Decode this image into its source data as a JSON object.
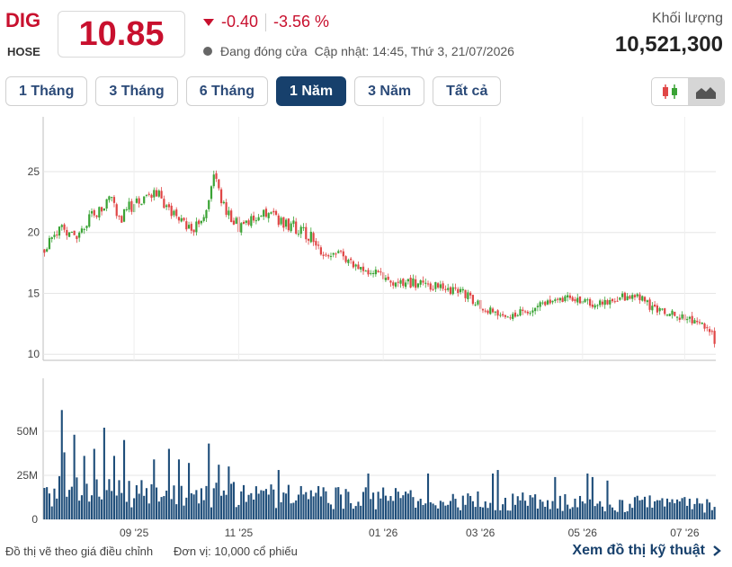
{
  "header": {
    "ticker": "DIG",
    "exchange": "HOSE",
    "price": "10.85",
    "change": "-0.40",
    "change_pct": "-3.56 %",
    "status": "Đang đóng cửa",
    "updated": "Cập nhật: 14:45, Thứ 3, 21/07/2026",
    "volume_label": "Khối lượng",
    "volume_value": "10,521,300"
  },
  "ranges": [
    "1 Tháng",
    "3 Tháng",
    "6 Tháng",
    "1 Năm",
    "3 Năm",
    "Tất cả"
  ],
  "active_range": "1 Năm",
  "chart_type_buttons": [
    {
      "icon": "candlestick-icon",
      "active": false
    },
    {
      "icon": "area-chart-icon",
      "active": true
    }
  ],
  "colors": {
    "up": "#3aa335",
    "down": "#e04646",
    "volume": "#1f4e7a",
    "grid": "#e6e6e6",
    "accent": "#c8102e"
  },
  "footer": {
    "note1": "Đồ thị vẽ theo giá điều chỉnh",
    "note2": "Đơn vị: 10,000 cổ phiếu",
    "tech_link": "Xem đồ thị kỹ thuật"
  },
  "chart_data": [
    {
      "type": "candlestick",
      "title": "",
      "ylim": [
        9.5,
        29.5
      ],
      "yticks": [
        10,
        15,
        20,
        25
      ],
      "xticks": [
        "09 '25",
        "11 '25",
        "01 '26",
        "03 '26",
        "05 '26",
        "07 '26"
      ],
      "xtick_index": [
        36,
        78,
        136,
        175,
        216,
        257
      ],
      "count": 270,
      "anchors": [
        [
          0,
          18.5
        ],
        [
          6,
          20.5
        ],
        [
          12,
          19.5
        ],
        [
          20,
          21.5
        ],
        [
          26,
          23.0
        ],
        [
          30,
          21.0
        ],
        [
          36,
          22.5
        ],
        [
          44,
          23.5
        ],
        [
          50,
          22.0
        ],
        [
          56,
          21.0
        ],
        [
          60,
          20.0
        ],
        [
          66,
          22.5
        ],
        [
          68,
          24.5
        ],
        [
          72,
          22.0
        ],
        [
          78,
          20.5
        ],
        [
          84,
          21.0
        ],
        [
          90,
          21.5
        ],
        [
          100,
          20.5
        ],
        [
          108,
          19.5
        ],
        [
          112,
          18.0
        ],
        [
          118,
          18.5
        ],
        [
          126,
          17.0
        ],
        [
          134,
          16.5
        ],
        [
          140,
          16.0
        ],
        [
          150,
          15.8
        ],
        [
          160,
          15.5
        ],
        [
          168,
          15.0
        ],
        [
          175,
          14.0
        ],
        [
          180,
          13.5
        ],
        [
          186,
          12.8
        ],
        [
          192,
          13.5
        ],
        [
          200,
          14.0
        ],
        [
          206,
          14.3
        ],
        [
          212,
          14.6
        ],
        [
          220,
          14.2
        ],
        [
          230,
          14.6
        ],
        [
          236,
          14.9
        ],
        [
          240,
          14.5
        ],
        [
          244,
          13.8
        ],
        [
          252,
          13.3
        ],
        [
          258,
          12.9
        ],
        [
          264,
          12.3
        ],
        [
          268,
          11.8
        ],
        [
          269,
          10.85
        ]
      ],
      "volume": {
        "ylim": [
          0,
          80
        ],
        "yticks": [
          0,
          25,
          50
        ],
        "ytick_labels": [
          "0",
          "25M",
          "50M"
        ],
        "peaks": [
          [
            7,
            62
          ],
          [
            24,
            52
          ],
          [
            12,
            48
          ],
          [
            32,
            45
          ],
          [
            66,
            43
          ],
          [
            20,
            40
          ],
          [
            50,
            40
          ],
          [
            8,
            38
          ],
          [
            16,
            36
          ],
          [
            28,
            36
          ],
          [
            44,
            34
          ],
          [
            54,
            34
          ],
          [
            58,
            32
          ],
          [
            70,
            31
          ],
          [
            74,
            30
          ],
          [
            94,
            28
          ],
          [
            130,
            26
          ],
          [
            154,
            26
          ],
          [
            180,
            26
          ],
          [
            182,
            28
          ],
          [
            205,
            24
          ],
          [
            218,
            26
          ],
          [
            220,
            24
          ],
          [
            226,
            22
          ],
          [
            248,
            12
          ],
          [
            262,
            12
          ]
        ],
        "base_early": 16,
        "base_late": 8
      }
    }
  ]
}
